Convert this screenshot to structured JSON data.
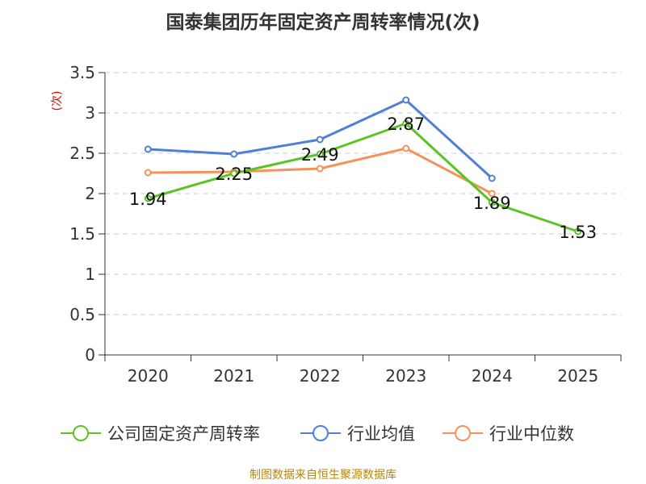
{
  "colors": {
    "company": "#5bc424",
    "industry_avg": "#4f7fd8",
    "industry_median": "#f4925b",
    "grid": "#cccccc",
    "source": "#b8860b",
    "ylabel": "#dd0000"
  },
  "chart_data": {
    "type": "line",
    "title": "国泰集团历年固定资产周转率情况(次)",
    "ylabel": "(次)",
    "xlabel": "",
    "categories": [
      "2020",
      "2021",
      "2022",
      "2023",
      "2024",
      "2025"
    ],
    "ylim": [
      0,
      3.5
    ],
    "yticks": [
      0,
      0.5,
      1,
      1.5,
      2,
      2.5,
      3,
      3.5
    ],
    "ytick_labels": [
      "0",
      "0.5",
      "1",
      "1.5",
      "2",
      "2.5",
      "3",
      "3.5"
    ],
    "grid": true,
    "legend_position": "bottom",
    "series": [
      {
        "name": "公司固定资产周转率",
        "color": "#5bc424",
        "values": [
          1.94,
          2.25,
          2.49,
          2.87,
          1.89,
          1.53
        ],
        "labels": [
          "1.94",
          "2.25",
          "2.49",
          "2.87",
          "1.89",
          "1.53"
        ],
        "show_labels": true
      },
      {
        "name": "行业均值",
        "color": "#4f7fd8",
        "values": [
          2.55,
          2.49,
          2.67,
          3.16,
          2.19,
          null
        ],
        "show_labels": false
      },
      {
        "name": "行业中位数",
        "color": "#f4925b",
        "values": [
          2.26,
          2.27,
          2.31,
          2.56,
          2.0,
          null
        ],
        "show_labels": false
      }
    ]
  },
  "legend": [
    {
      "label": "公司固定资产周转率"
    },
    {
      "label": "行业均值"
    },
    {
      "label": "行业中位数"
    }
  ],
  "source": "制图数据来自恒生聚源数据库"
}
